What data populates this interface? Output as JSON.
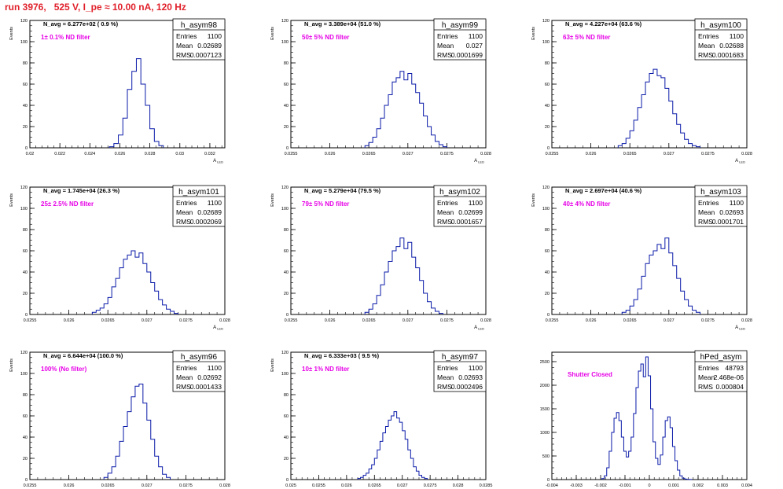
{
  "page": {
    "title": "run 3976,   525 V, I_pe ≈ 10.00 nA, 120 Hz"
  },
  "chart_data": [
    {
      "type": "histogram",
      "name": "h_asym98",
      "stats": {
        "entries_label": "Entries",
        "entries": "1100",
        "mean_label": "Mean",
        "mean": "0.02689",
        "rms_label": "RMS",
        "rms": "0.0007123"
      },
      "navg": "N_avg = 6.277e+02 ( 0.9 %)",
      "filter": "1± 0.1% ND filter",
      "ylabel": "Events",
      "xlabel": "A_{LED}",
      "xlim": [
        0.02,
        0.033
      ],
      "ylim": [
        0,
        120
      ],
      "xticks": [
        "0.02",
        "0.022",
        "0.024",
        "0.026",
        "0.028",
        "0.03",
        "0.032"
      ],
      "yticks": [
        "0",
        "20",
        "40",
        "60",
        "80",
        "100",
        "120"
      ],
      "bin_edges": [
        0.0253,
        0.0256,
        0.0259,
        0.0262,
        0.0265,
        0.0268,
        0.0271,
        0.0274,
        0.0277,
        0.028,
        0.0283,
        0.0286,
        0.0289
      ],
      "counts": [
        1,
        4,
        12,
        28,
        55,
        72,
        84,
        60,
        40,
        18,
        6,
        2
      ]
    },
    {
      "type": "histogram",
      "name": "h_asym99",
      "stats": {
        "entries_label": "Entries",
        "entries": "1100",
        "mean_label": "Mean",
        "mean": "0.027",
        "rms_label": "RMS",
        "rms": "0.0001699"
      },
      "navg": "N_avg = 3.389e+04 (51.0 %)",
      "filter": "50± 5% ND filter",
      "ylabel": "Events",
      "xlabel": "A_{LED}",
      "xlim": [
        0.0255,
        0.028
      ],
      "ylim": [
        0,
        120
      ],
      "xticks": [
        "0.0255",
        "0.026",
        "0.0265",
        "0.027",
        "0.0275",
        "0.028"
      ],
      "yticks": [
        "0",
        "20",
        "40",
        "60",
        "80",
        "100",
        "120"
      ],
      "bin_edges": [
        0.02645,
        0.0265,
        0.02655,
        0.0266,
        0.02665,
        0.0267,
        0.02675,
        0.0268,
        0.02685,
        0.0269,
        0.02695,
        0.027,
        0.02705,
        0.0271,
        0.02715,
        0.0272,
        0.02725,
        0.0273,
        0.02735,
        0.0274,
        0.02745,
        0.0275
      ],
      "counts": [
        2,
        5,
        10,
        18,
        28,
        40,
        50,
        62,
        66,
        72,
        64,
        70,
        60,
        52,
        42,
        30,
        20,
        12,
        6,
        3,
        1
      ]
    },
    {
      "type": "histogram",
      "name": "h_asym100",
      "stats": {
        "entries_label": "Entries",
        "entries": "1100",
        "mean_label": "Mean",
        "mean": "0.02688",
        "rms_label": "RMS",
        "rms": "0.0001683"
      },
      "navg": "N_avg = 4.227e+04 (63.6 %)",
      "filter": "63± 5% ND filter",
      "ylabel": "Events",
      "xlabel": "A_{LED}",
      "xlim": [
        0.0255,
        0.028
      ],
      "ylim": [
        0,
        120
      ],
      "xticks": [
        "0.0255",
        "0.026",
        "0.0265",
        "0.027",
        "0.0275",
        "0.028"
      ],
      "yticks": [
        "0",
        "20",
        "40",
        "60",
        "80",
        "100",
        "120"
      ],
      "bin_edges": [
        0.02635,
        0.0264,
        0.02645,
        0.0265,
        0.02655,
        0.0266,
        0.02665,
        0.0267,
        0.02675,
        0.0268,
        0.02685,
        0.0269,
        0.02695,
        0.027,
        0.02705,
        0.0271,
        0.02715,
        0.0272,
        0.02725,
        0.0273,
        0.02735,
        0.0274
      ],
      "counts": [
        2,
        4,
        9,
        16,
        26,
        38,
        50,
        62,
        70,
        74,
        68,
        66,
        56,
        44,
        32,
        22,
        14,
        8,
        4,
        2,
        1
      ]
    },
    {
      "type": "histogram",
      "name": "h_asym101",
      "stats": {
        "entries_label": "Entries",
        "entries": "1100",
        "mean_label": "Mean",
        "mean": "0.02689",
        "rms_label": "RMS",
        "rms": "0.0002069"
      },
      "navg": "N_avg = 1.745e+04 (26.3 %)",
      "filter": "25± 2.5% ND filter",
      "ylabel": "Events",
      "xlabel": "A_{LED}",
      "xlim": [
        0.0255,
        0.028
      ],
      "ylim": [
        0,
        120
      ],
      "xticks": [
        "0.0255",
        "0.026",
        "0.0265",
        "0.027",
        "0.0275",
        "0.028"
      ],
      "yticks": [
        "0",
        "20",
        "40",
        "60",
        "80",
        "100",
        "120"
      ],
      "bin_edges": [
        0.0263,
        0.02635,
        0.0264,
        0.02645,
        0.0265,
        0.02655,
        0.0266,
        0.02665,
        0.0267,
        0.02675,
        0.0268,
        0.02685,
        0.0269,
        0.02695,
        0.027,
        0.02705,
        0.0271,
        0.02715,
        0.0272,
        0.02725,
        0.0273,
        0.02735,
        0.0274
      ],
      "counts": [
        2,
        4,
        6,
        10,
        16,
        26,
        34,
        44,
        52,
        56,
        60,
        54,
        58,
        48,
        40,
        30,
        22,
        14,
        9,
        5,
        3,
        1
      ]
    },
    {
      "type": "histogram",
      "name": "h_asym102",
      "stats": {
        "entries_label": "Entries",
        "entries": "1100",
        "mean_label": "Mean",
        "mean": "0.02699",
        "rms_label": "RMS",
        "rms": "0.0001657"
      },
      "navg": "N_avg = 5.279e+04 (79.5 %)",
      "filter": "79± 5% ND filter",
      "ylabel": "Events",
      "xlabel": "A_{LED}",
      "xlim": [
        0.0255,
        0.028
      ],
      "ylim": [
        0,
        120
      ],
      "xticks": [
        "0.0255",
        "0.026",
        "0.0265",
        "0.027",
        "0.0275",
        "0.028"
      ],
      "yticks": [
        "0",
        "20",
        "40",
        "60",
        "80",
        "100",
        "120"
      ],
      "bin_edges": [
        0.02645,
        0.0265,
        0.02655,
        0.0266,
        0.02665,
        0.0267,
        0.02675,
        0.0268,
        0.02685,
        0.0269,
        0.02695,
        0.027,
        0.02705,
        0.0271,
        0.02715,
        0.0272,
        0.02725,
        0.0273,
        0.02735,
        0.0274,
        0.02745
      ],
      "counts": [
        2,
        5,
        10,
        18,
        28,
        40,
        50,
        60,
        64,
        72,
        62,
        68,
        54,
        44,
        32,
        20,
        12,
        6,
        3,
        1
      ]
    },
    {
      "type": "histogram",
      "name": "h_asym103",
      "stats": {
        "entries_label": "Entries",
        "entries": "1100",
        "mean_label": "Mean",
        "mean": "0.02693",
        "rms_label": "RMS",
        "rms": "0.0001701"
      },
      "navg": "N_avg = 2.697e+04 (40.6 %)",
      "filter": "40± 4% ND filter",
      "ylabel": "Events",
      "xlabel": "A_{LED}",
      "xlim": [
        0.0255,
        0.028
      ],
      "ylim": [
        0,
        120
      ],
      "xticks": [
        "0.0255",
        "0.026",
        "0.0265",
        "0.027",
        "0.0275",
        "0.028"
      ],
      "yticks": [
        "0",
        "20",
        "40",
        "60",
        "80",
        "100",
        "120"
      ],
      "bin_edges": [
        0.0264,
        0.02645,
        0.0265,
        0.02655,
        0.0266,
        0.02665,
        0.0267,
        0.02675,
        0.0268,
        0.02685,
        0.0269,
        0.02695,
        0.027,
        0.02705,
        0.0271,
        0.02715,
        0.0272,
        0.02725,
        0.0273,
        0.02735,
        0.0274
      ],
      "counts": [
        2,
        4,
        8,
        14,
        24,
        36,
        48,
        56,
        60,
        66,
        62,
        72,
        58,
        46,
        34,
        22,
        14,
        8,
        4,
        2
      ]
    },
    {
      "type": "histogram",
      "name": "h_asym96",
      "stats": {
        "entries_label": "Entries",
        "entries": "1100",
        "mean_label": "Mean",
        "mean": "0.02692",
        "rms_label": "RMS",
        "rms": "0.0001433"
      },
      "navg": "N_avg = 6.644e+04 (100.0 %)",
      "filter": "100% (No filter)",
      "ylabel": "Events",
      "xlabel": "A_{LED}",
      "xlim": [
        0.0255,
        0.028
      ],
      "ylim": [
        0,
        120
      ],
      "xticks": [
        "0.0255",
        "0.026",
        "0.0265",
        "0.027",
        "0.0275",
        "0.028"
      ],
      "yticks": [
        "0",
        "20",
        "40",
        "60",
        "80",
        "100",
        "120"
      ],
      "bin_edges": [
        0.02645,
        0.0265,
        0.02655,
        0.0266,
        0.02665,
        0.0267,
        0.02675,
        0.0268,
        0.02685,
        0.0269,
        0.02695,
        0.027,
        0.02705,
        0.0271,
        0.02715,
        0.0272,
        0.02725,
        0.0273
      ],
      "counts": [
        2,
        6,
        12,
        22,
        36,
        50,
        64,
        78,
        88,
        90,
        72,
        56,
        38,
        22,
        12,
        5,
        2
      ]
    },
    {
      "type": "histogram",
      "name": "h_asym97",
      "stats": {
        "entries_label": "Entries",
        "entries": "1100",
        "mean_label": "Mean",
        "mean": "0.02693",
        "rms_label": "RMS",
        "rms": "0.0002496"
      },
      "navg": "N_avg = 6.333e+03 ( 9.5 %)",
      "filter": "10± 1% ND filter",
      "ylabel": "Events",
      "xlabel": "A_{LED}",
      "xlim": [
        0.025,
        0.0285
      ],
      "ylim": [
        0,
        120
      ],
      "xticks": [
        "0.025",
        "0.0255",
        "0.026",
        "0.0265",
        "0.027",
        "0.0275",
        "0.028",
        "0.0285"
      ],
      "yticks": [
        "0",
        "20",
        "40",
        "60",
        "80",
        "100",
        "120"
      ],
      "bin_edges": [
        0.0262,
        0.02625,
        0.0263,
        0.02635,
        0.0264,
        0.02645,
        0.0265,
        0.02655,
        0.0266,
        0.02665,
        0.0267,
        0.02675,
        0.0268,
        0.02685,
        0.0269,
        0.02695,
        0.027,
        0.02705,
        0.0271,
        0.02715,
        0.0272,
        0.02725,
        0.0273,
        0.02735,
        0.0274,
        0.02745
      ],
      "counts": [
        1,
        2,
        4,
        6,
        10,
        14,
        20,
        28,
        36,
        44,
        50,
        56,
        60,
        64,
        58,
        54,
        46,
        38,
        28,
        20,
        12,
        8,
        4,
        2,
        1
      ]
    },
    {
      "type": "histogram",
      "name": "hPed_asym",
      "stats": {
        "entries_label": "Entries",
        "entries": "48793",
        "mean_label": "Mean",
        "mean": "2.468e-06",
        "rms_label": "RMS",
        "rms": "0.000804"
      },
      "navg": "",
      "filter": "Shutter Closed",
      "ylabel": "",
      "xlabel": "",
      "xlim": [
        -0.004,
        0.004
      ],
      "ylim": [
        0,
        2700
      ],
      "xticks": [
        "-0.004",
        "-0.003",
        "-0.002",
        "-0.001",
        "0",
        "0.001",
        "0.002",
        "0.003",
        "0.004"
      ],
      "yticks": [
        "0",
        "500",
        "1000",
        "1500",
        "2000",
        "2500"
      ],
      "bin_edges": [
        -0.00195,
        -0.00185,
        -0.00175,
        -0.00165,
        -0.00155,
        -0.00145,
        -0.00135,
        -0.00125,
        -0.00115,
        -0.00105,
        -0.00095,
        -0.00085,
        -0.00075,
        -0.00065,
        -0.00055,
        -0.00045,
        -0.00035,
        -0.00025,
        -0.00015,
        -5e-05,
        5e-05,
        0.00015,
        0.00025,
        0.00035,
        0.00045,
        0.00055,
        0.00065,
        0.00075,
        0.00085,
        0.00095,
        0.00105,
        0.00115,
        0.00125,
        0.00135,
        0.00145,
        0.00155,
        0.00165,
        0.00175
      ],
      "counts": [
        20,
        80,
        250,
        600,
        1000,
        1300,
        1420,
        1250,
        900,
        600,
        480,
        600,
        900,
        1400,
        1950,
        2300,
        2450,
        2180,
        2600,
        2200,
        1500,
        800,
        450,
        320,
        520,
        900,
        1250,
        1330,
        1100,
        700,
        400,
        200,
        80,
        30,
        10,
        5,
        2
      ]
    }
  ]
}
